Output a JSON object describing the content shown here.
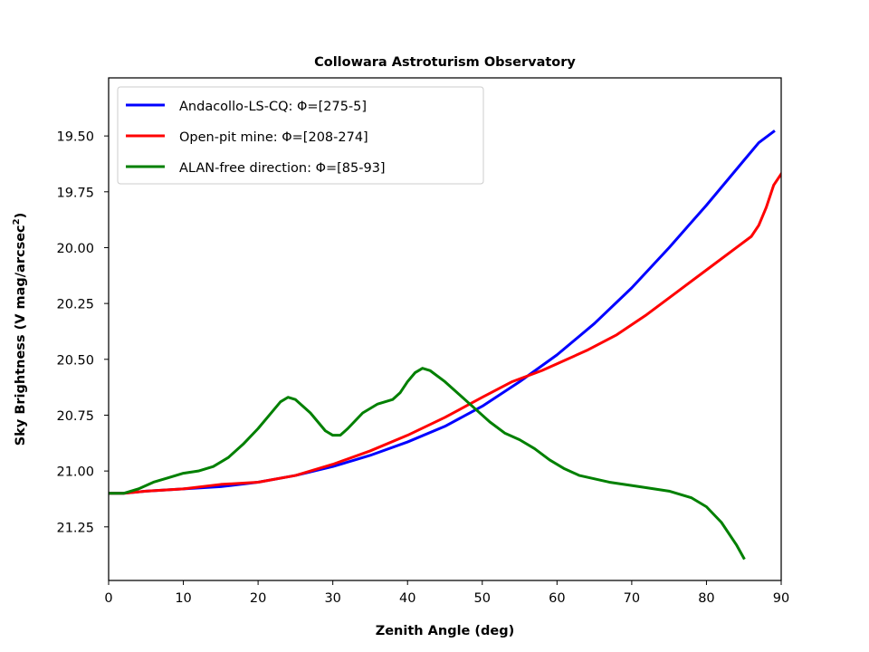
{
  "chart_data": {
    "type": "line",
    "title": "Collowara Astroturism Observatory",
    "xlabel": "Zenith Angle (deg)",
    "ylabel_main": "Sky Brightness (V mag/arcsec",
    "ylabel_sup": "2",
    "ylabel_close": ")",
    "xlim": [
      0,
      90
    ],
    "ylim": [
      21.49,
      19.24
    ],
    "y_inverted": true,
    "xticks": [
      {
        "value": 0,
        "label": "0"
      },
      {
        "value": 10,
        "label": "10"
      },
      {
        "value": 20,
        "label": "20"
      },
      {
        "value": 30,
        "label": "30"
      },
      {
        "value": 40,
        "label": "40"
      },
      {
        "value": 50,
        "label": "50"
      },
      {
        "value": 60,
        "label": "60"
      },
      {
        "value": 70,
        "label": "70"
      },
      {
        "value": 80,
        "label": "80"
      },
      {
        "value": 90,
        "label": "90"
      }
    ],
    "yticks": [
      {
        "value": 19.5,
        "label": "19.50"
      },
      {
        "value": 19.75,
        "label": "19.75"
      },
      {
        "value": 20.0,
        "label": "20.00"
      },
      {
        "value": 20.25,
        "label": "20.25"
      },
      {
        "value": 20.5,
        "label": "20.50"
      },
      {
        "value": 20.75,
        "label": "20.75"
      },
      {
        "value": 21.0,
        "label": "21.00"
      },
      {
        "value": 21.25,
        "label": "21.25"
      }
    ],
    "grid": false,
    "legend_position": "top-left",
    "series": [
      {
        "name": "Andacollo-LS-CQ: Φ=[275-5]",
        "color": "#0000ff",
        "x": [
          0,
          2,
          5,
          10,
          15,
          20,
          25,
          30,
          35,
          40,
          45,
          50,
          55,
          60,
          65,
          70,
          75,
          80,
          85,
          87,
          89
        ],
        "y": [
          21.1,
          21.1,
          21.09,
          21.08,
          21.07,
          21.05,
          21.02,
          20.98,
          20.93,
          20.87,
          20.8,
          20.71,
          20.6,
          20.48,
          20.34,
          20.18,
          20.0,
          19.81,
          19.61,
          19.53,
          19.48
        ]
      },
      {
        "name": "Open-pit mine: Φ=[208-274]",
        "color": "#ff0000",
        "x": [
          0,
          2,
          5,
          10,
          15,
          20,
          25,
          30,
          35,
          40,
          45,
          50,
          54,
          58,
          60,
          64,
          68,
          72,
          76,
          80,
          84,
          86,
          87,
          88,
          89,
          90
        ],
        "y": [
          21.1,
          21.1,
          21.09,
          21.08,
          21.06,
          21.05,
          21.02,
          20.97,
          20.91,
          20.84,
          20.76,
          20.67,
          20.6,
          20.55,
          20.52,
          20.46,
          20.39,
          20.3,
          20.2,
          20.1,
          20.0,
          19.95,
          19.9,
          19.82,
          19.72,
          19.67
        ]
      },
      {
        "name": "ALAN-free direction: Φ=[85-93]",
        "color": "#008000",
        "x": [
          0,
          2,
          4,
          6,
          8,
          10,
          12,
          14,
          16,
          18,
          20,
          22,
          23,
          24,
          25,
          27,
          29,
          30,
          31,
          32,
          34,
          36,
          37,
          38,
          39,
          40,
          41,
          42,
          43,
          45,
          47,
          49,
          51,
          53,
          55,
          57,
          59,
          61,
          63,
          67,
          71,
          75,
          78,
          80,
          82,
          84,
          85
        ],
        "y": [
          21.1,
          21.1,
          21.08,
          21.05,
          21.03,
          21.01,
          21.0,
          20.98,
          20.94,
          20.88,
          20.81,
          20.73,
          20.69,
          20.67,
          20.68,
          20.74,
          20.82,
          20.84,
          20.84,
          20.81,
          20.74,
          20.7,
          20.69,
          20.68,
          20.65,
          20.6,
          20.56,
          20.54,
          20.55,
          20.6,
          20.66,
          20.72,
          20.78,
          20.83,
          20.86,
          20.9,
          20.95,
          20.99,
          21.02,
          21.05,
          21.07,
          21.09,
          21.12,
          21.16,
          21.23,
          21.33,
          21.39
        ]
      }
    ]
  }
}
